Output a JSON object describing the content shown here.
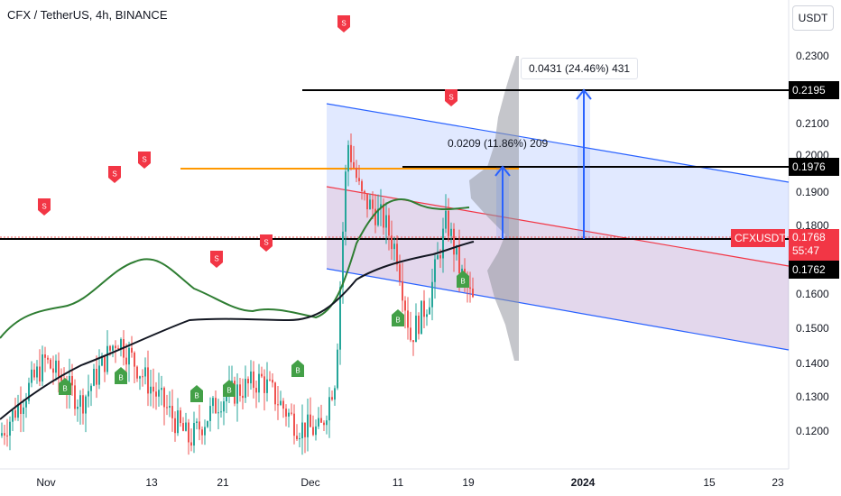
{
  "header": {
    "title": "CFX / TetherUS, 4h, BINANCE",
    "currency": "USDT"
  },
  "price_axis": [
    "0.2300",
    "0.2100",
    "0.2000",
    "0.1900",
    "0.1800",
    "0.1600",
    "0.1500",
    "0.1400",
    "0.1300",
    "0.1200"
  ],
  "price_tags": {
    "level_top": "0.2195",
    "level_mid": "0.1976",
    "symbol": "CFXUSDT",
    "last_price": "0.1768",
    "countdown": "55:47",
    "level_low": "0.1762"
  },
  "measures": {
    "upper": "0.0431 (24.46%) 431",
    "lower": "0.0209 (11.86%) 209"
  },
  "time_axis": [
    {
      "label": "Nov",
      "bold": false
    },
    {
      "label": "13",
      "bold": false
    },
    {
      "label": "21",
      "bold": false
    },
    {
      "label": "Dec",
      "bold": false
    },
    {
      "label": "11",
      "bold": false
    },
    {
      "label": "19",
      "bold": false
    },
    {
      "label": "2024",
      "bold": true
    },
    {
      "label": "15",
      "bold": false
    },
    {
      "label": "23",
      "bold": false
    }
  ],
  "signal_labels": {
    "sell": "S",
    "buy": "B"
  },
  "colors": {
    "up": "#26a69a",
    "down": "#ef5350",
    "ma_fast": "#2e7d32",
    "ma_slow": "#131722",
    "channel": "#2962ff",
    "channel_mid": "#f23645",
    "orange_line": "#ff9800",
    "sell": "#f23645",
    "buy": "#43a047"
  },
  "chart_data": {
    "type": "candlestick",
    "title": "CFX / TetherUS, 4h, BINANCE",
    "y_unit": "USDT",
    "ylim": [
      0.112,
      0.237
    ],
    "x_ticks": [
      "Nov",
      "13",
      "21",
      "Dec",
      "11",
      "19",
      "2024",
      "15",
      "23"
    ],
    "close_path": [
      [
        0.149,
        "Nov"
      ],
      [
        0.165,
        "Nov"
      ],
      [
        0.158,
        "Nov"
      ],
      [
        0.167,
        "13"
      ],
      [
        0.162,
        "13"
      ],
      [
        0.148,
        "21"
      ],
      [
        0.157,
        "21"
      ],
      [
        0.159,
        "21"
      ],
      [
        0.152,
        "Dec"
      ],
      [
        0.15,
        "Dec"
      ],
      [
        0.158,
        "Dec"
      ],
      [
        0.212,
        "Dec"
      ],
      [
        0.202,
        "Dec"
      ],
      [
        0.196,
        "Dec"
      ],
      [
        0.19,
        "11"
      ],
      [
        0.168,
        "11"
      ],
      [
        0.178,
        "11"
      ],
      [
        0.195,
        "19"
      ],
      [
        0.184,
        "19"
      ],
      [
        0.177,
        "19"
      ]
    ],
    "levels": [
      0.2195,
      0.1976,
      0.1762
    ],
    "last_price": 0.1768,
    "orange_level": 0.1976,
    "measurements": [
      {
        "label": "0.0431 (24.46%) 431",
        "change": 0.0431
      },
      {
        "label": "0.0209 (11.86%) 209",
        "change": 0.0209
      }
    ],
    "signals": {
      "sell": [
        "Nov",
        "13",
        "13",
        "21",
        "21",
        "Dec",
        "19"
      ],
      "buy": [
        "Nov",
        "13",
        "21",
        "21",
        "Dec",
        "11",
        "19"
      ]
    }
  }
}
